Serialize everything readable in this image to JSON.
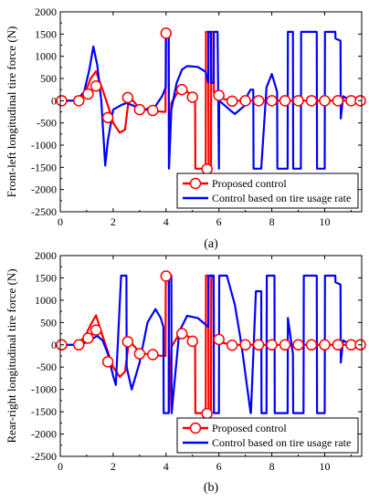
{
  "chart_data": [
    {
      "type": "line",
      "caption": "(a)",
      "ylabel": "Front-left longitudinal tire force (N)",
      "xlabel": "",
      "xlim": [
        0,
        11.4
      ],
      "ylim": [
        -2500,
        2000
      ],
      "xticks": [
        "0",
        "2",
        "4",
        "6",
        "8",
        "10"
      ],
      "yticks": [
        "-2500",
        "-2000",
        "-1500",
        "-1000",
        "-500",
        "0",
        "500",
        "1000",
        "1500",
        "2000"
      ],
      "legend_position": "bottom-right",
      "grid": false,
      "series": [
        {
          "name": "Proposed control",
          "color": "#ff0000",
          "marker": "circle",
          "x": [
            0,
            0.5,
            0.9,
            1.15,
            1.35,
            1.6,
            1.85,
            2.0,
            2.25,
            2.45,
            2.6,
            2.9,
            3.2,
            3.5,
            3.9,
            3.98,
            3.99,
            4.1,
            4.11,
            4.2,
            4.5,
            4.8,
            5.0,
            5.1,
            5.11,
            5.5,
            5.51,
            5.6,
            5.61,
            5.7,
            5.71,
            5.8,
            5.81,
            5.9,
            6.1,
            6.5,
            7.0,
            8.0,
            9.0,
            10.0,
            11.0,
            11.4
          ],
          "y": [
            0,
            0,
            120,
            500,
            660,
            250,
            -200,
            -500,
            -720,
            -650,
            100,
            -100,
            -200,
            -230,
            -250,
            -250,
            1550,
            1550,
            -1500,
            -50,
            250,
            200,
            120,
            30,
            -1530,
            -1530,
            1550,
            1550,
            -1530,
            -1530,
            1550,
            1550,
            200,
            100,
            50,
            0,
            0,
            0,
            0,
            0,
            0,
            0
          ],
          "marker_x": [
            0.05,
            0.7,
            1.05,
            1.35,
            1.8,
            2.55,
            3.0,
            3.5,
            4.0,
            4.6,
            5.0,
            5.55,
            6.0,
            6.5,
            7.0,
            7.5,
            8.0,
            8.5,
            9.0,
            9.5,
            10.0,
            10.5,
            11.0,
            11.35
          ],
          "marker_y": [
            0,
            0,
            150,
            330,
            -380,
            70,
            -200,
            -220,
            1520,
            250,
            80,
            -1540,
            120,
            -10,
            0,
            0,
            0,
            0,
            0,
            0,
            0,
            0,
            0,
            0
          ]
        },
        {
          "name": "Control based on tire usage rate",
          "color": "#0000ff",
          "x": [
            0,
            0.6,
            0.9,
            1.1,
            1.25,
            1.4,
            1.55,
            1.7,
            1.8,
            2.0,
            2.3,
            2.5,
            2.8,
            3.2,
            3.6,
            3.85,
            3.99,
            4.0,
            4.1,
            4.11,
            4.2,
            4.4,
            4.6,
            4.8,
            5.2,
            5.5,
            5.6,
            5.61,
            5.7,
            5.71,
            5.8,
            5.81,
            5.95,
            6.0,
            6.01,
            6.4,
            6.6,
            7.0,
            7.1,
            7.2,
            7.3,
            7.31,
            7.6,
            7.8,
            8.0,
            8.2,
            8.21,
            8.6,
            8.61,
            8.8,
            8.81,
            9.1,
            9.11,
            9.7,
            9.71,
            10.0,
            10.01,
            10.4,
            10.41,
            10.6,
            10.61,
            10.7,
            11.0,
            11.4
          ],
          "y": [
            0,
            0,
            200,
            700,
            1220,
            800,
            0,
            -1460,
            -900,
            -200,
            -100,
            -50,
            -120,
            -200,
            -120,
            100,
            300,
            1550,
            1550,
            -1530,
            -200,
            400,
            700,
            780,
            760,
            650,
            400,
            1550,
            1550,
            400,
            400,
            1550,
            1550,
            -1530,
            0,
            -200,
            -300,
            -100,
            150,
            250,
            250,
            -1530,
            -1530,
            300,
            600,
            200,
            -1530,
            -1530,
            1550,
            1550,
            -1530,
            -1530,
            1550,
            1550,
            -1530,
            -1530,
            1550,
            1550,
            1400,
            1350,
            -400,
            100,
            0,
            0
          ]
        }
      ]
    },
    {
      "type": "line",
      "caption": "(b)",
      "ylabel": "Rear-right longitudinal tire force (N)",
      "xlabel": "",
      "xlim": [
        0,
        11.4
      ],
      "ylim": [
        -2500,
        2000
      ],
      "xticks": [
        "0",
        "2",
        "4",
        "6",
        "8",
        "10"
      ],
      "yticks": [
        "-2500",
        "-2000",
        "-1500",
        "-1000",
        "-500",
        "0",
        "500",
        "1000",
        "1500",
        "2000"
      ],
      "legend_position": "bottom-right",
      "grid": false,
      "series": [
        {
          "name": "Proposed control",
          "color": "#ff0000",
          "marker": "circle",
          "x": [
            0,
            0.5,
            0.9,
            1.15,
            1.35,
            1.6,
            1.85,
            2.0,
            2.25,
            2.45,
            2.6,
            2.9,
            3.2,
            3.5,
            3.9,
            3.98,
            3.99,
            4.1,
            4.11,
            4.2,
            4.5,
            4.8,
            5.0,
            5.1,
            5.11,
            5.5,
            5.51,
            5.6,
            5.61,
            5.7,
            5.71,
            5.8,
            5.81,
            5.9,
            6.1,
            6.5,
            7.0,
            8.0,
            9.0,
            10.0,
            11.0,
            11.4
          ],
          "y": [
            0,
            0,
            150,
            450,
            660,
            200,
            -250,
            -500,
            -720,
            -600,
            100,
            -100,
            -200,
            -230,
            -250,
            -250,
            1550,
            1550,
            -1500,
            -50,
            250,
            200,
            120,
            30,
            -1530,
            -1530,
            1550,
            1550,
            -1530,
            -1530,
            1550,
            1550,
            200,
            100,
            50,
            0,
            0,
            0,
            0,
            0,
            0,
            0
          ],
          "marker_x": [
            0.05,
            0.7,
            1.05,
            1.35,
            1.8,
            2.55,
            3.0,
            3.5,
            4.0,
            4.6,
            5.0,
            5.55,
            6.0,
            6.5,
            7.0,
            7.5,
            8.0,
            8.5,
            9.0,
            9.5,
            10.0,
            10.5,
            11.0,
            11.35
          ],
          "marker_y": [
            0,
            0,
            150,
            330,
            -380,
            70,
            -200,
            -220,
            1540,
            250,
            80,
            -1540,
            120,
            -10,
            0,
            0,
            0,
            0,
            0,
            0,
            0,
            0,
            0,
            0
          ]
        },
        {
          "name": "Control based on tire usage rate",
          "color": "#0000ff",
          "x": [
            0,
            0.6,
            1.0,
            1.4,
            1.6,
            1.8,
            2.0,
            2.1,
            2.3,
            2.5,
            2.51,
            2.7,
            3.0,
            3.3,
            3.6,
            3.8,
            3.9,
            3.91,
            4.1,
            4.11,
            4.2,
            4.21,
            4.5,
            4.8,
            5.2,
            5.6,
            5.61,
            5.8,
            5.81,
            6.0,
            6.01,
            6.3,
            6.6,
            6.8,
            6.9,
            7.2,
            7.21,
            7.4,
            7.6,
            7.61,
            7.8,
            7.81,
            8.1,
            8.11,
            8.6,
            8.61,
            8.8,
            8.81,
            9.2,
            9.21,
            9.7,
            9.71,
            10.0,
            10.01,
            10.4,
            10.41,
            10.6,
            10.61,
            10.7,
            11.0,
            11.4
          ],
          "y": [
            0,
            0,
            50,
            200,
            100,
            -200,
            -700,
            -900,
            1550,
            1550,
            -500,
            -1000,
            -400,
            500,
            800,
            600,
            400,
            -1530,
            -1530,
            1550,
            1550,
            -1530,
            300,
            650,
            600,
            400,
            1550,
            1550,
            -1530,
            -1530,
            1550,
            1550,
            900,
            200,
            -200,
            -1530,
            -1530,
            1200,
            1200,
            -1530,
            -1530,
            1550,
            1550,
            -1530,
            -1530,
            600,
            -200,
            -1530,
            -1530,
            1550,
            1550,
            -1530,
            -1530,
            1550,
            1550,
            1400,
            1350,
            -400,
            100,
            0,
            0
          ]
        }
      ]
    }
  ]
}
